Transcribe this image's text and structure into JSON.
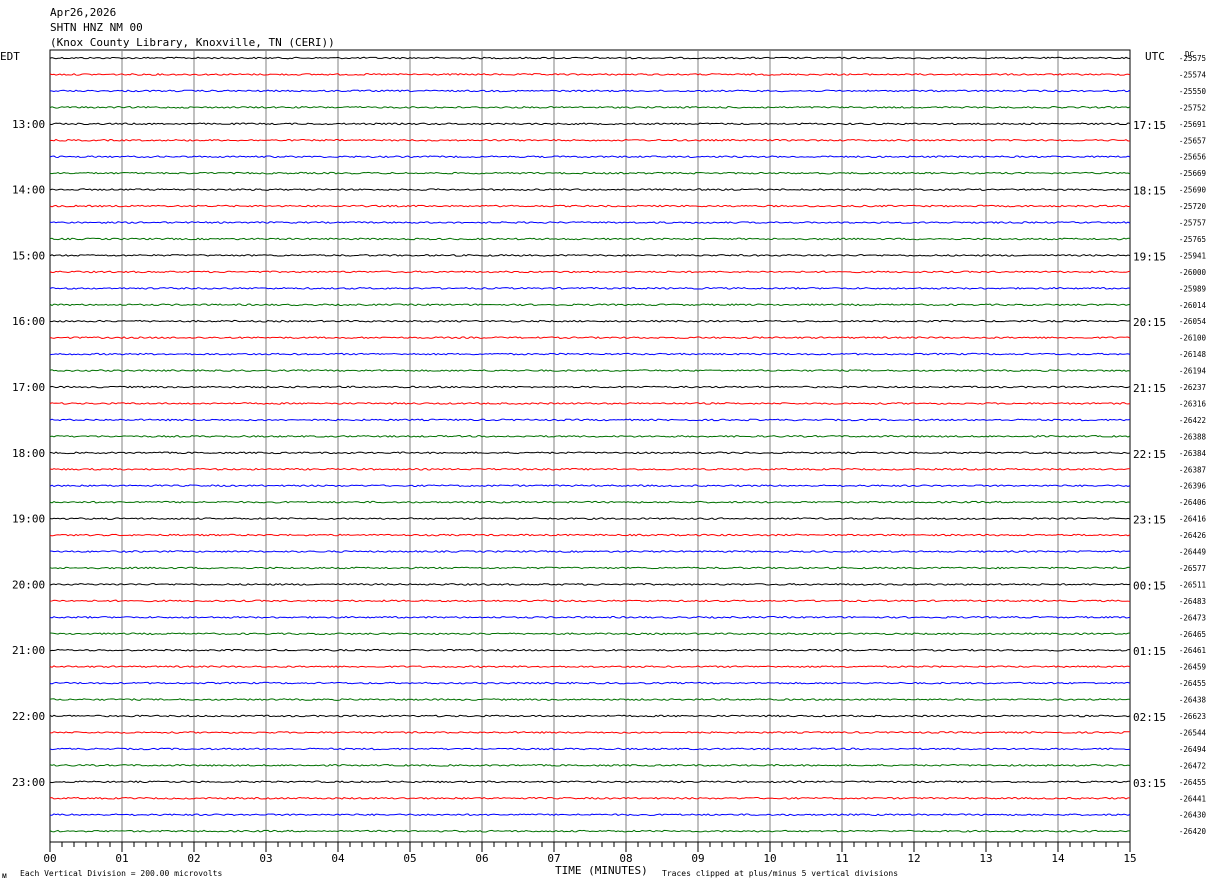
{
  "header": {
    "date": "Apr26,2026",
    "station": "SHTN HNZ NM 00",
    "location": "(Knox County Library, Knoxville, TN (CERI))"
  },
  "left_zone_label": "EDT",
  "right_zone_label": "UTC",
  "dc_header": "DC",
  "chart_data": {
    "type": "line",
    "description_kind": "helicorder",
    "xlabel": "TIME (MINUTES)",
    "x_ticks": [
      "00",
      "01",
      "02",
      "03",
      "04",
      "05",
      "06",
      "07",
      "08",
      "09",
      "10",
      "11",
      "12",
      "13",
      "14",
      "15"
    ],
    "xlim": [
      0,
      15
    ],
    "trace_colors": [
      "#000000",
      "#ff0000",
      "#0000ff",
      "#007000"
    ],
    "left_time_labels": [
      {
        "row": 4,
        "label": "13:00"
      },
      {
        "row": 8,
        "label": "14:00"
      },
      {
        "row": 12,
        "label": "15:00"
      },
      {
        "row": 16,
        "label": "16:00"
      },
      {
        "row": 20,
        "label": "17:00"
      },
      {
        "row": 24,
        "label": "18:00"
      },
      {
        "row": 28,
        "label": "19:00"
      },
      {
        "row": 32,
        "label": "20:00"
      },
      {
        "row": 36,
        "label": "21:00"
      },
      {
        "row": 40,
        "label": "22:00"
      },
      {
        "row": 44,
        "label": "23:00"
      }
    ],
    "right_time_labels": [
      {
        "row": 4,
        "label": "17:15"
      },
      {
        "row": 8,
        "label": "18:15"
      },
      {
        "row": 12,
        "label": "19:15"
      },
      {
        "row": 16,
        "label": "20:15"
      },
      {
        "row": 20,
        "label": "21:15"
      },
      {
        "row": 24,
        "label": "22:15"
      },
      {
        "row": 28,
        "label": "23:15"
      },
      {
        "row": 32,
        "label": "00:15"
      },
      {
        "row": 36,
        "label": "01:15"
      },
      {
        "row": 40,
        "label": "02:15"
      },
      {
        "row": 44,
        "label": "03:15"
      }
    ],
    "dc_offsets": [
      "-25575",
      "-25574",
      "-25550",
      "-25752",
      "-25691",
      "-25657",
      "-25656",
      "-25669",
      "-25690",
      "-25720",
      "-25757",
      "-25765",
      "-25941",
      "-26000",
      "-25989",
      "-26014",
      "-26054",
      "-26100",
      "-26148",
      "-26194",
      "-26237",
      "-26316",
      "-26422",
      "-26388",
      "-26384",
      "-26387",
      "-26396",
      "-26406",
      "-26416",
      "-26426",
      "-26449",
      "-26577",
      "-26511",
      "-26483",
      "-26473",
      "-26465",
      "-26461",
      "-26459",
      "-26455",
      "-26438",
      "-26623",
      "-26544",
      "-26494",
      "-26472",
      "-26455",
      "-26441",
      "-26430",
      "-26420"
    ]
  },
  "footer": {
    "left_note": "Each Vertical Division =  200.00 microvolts",
    "right_note": "Traces clipped at plus/minus 5 vertical divisions",
    "corner_mark": "ᴍ"
  }
}
